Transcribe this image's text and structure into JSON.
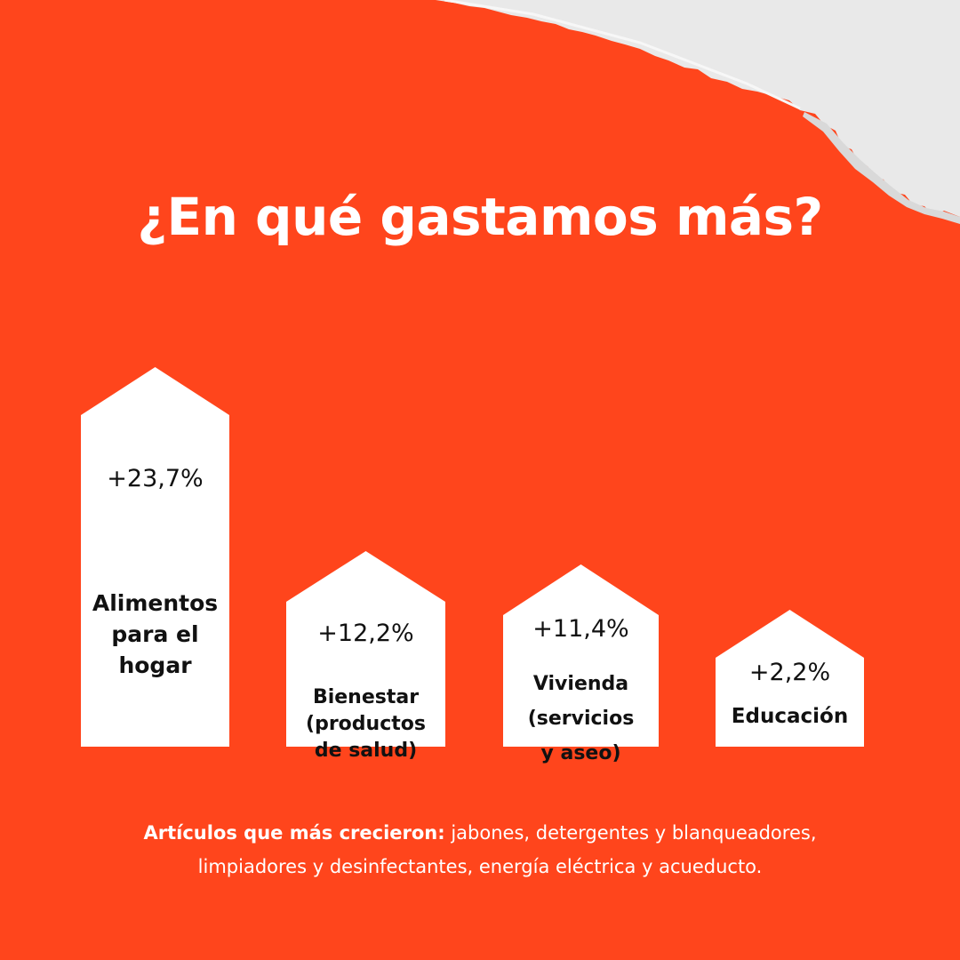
{
  "title": "¿En qué gastamos más?",
  "chart_data": {
    "type": "bar",
    "categories": [
      "Alimentos para el hogar",
      "Bienestar (productos de salud)",
      "Vivienda (servicios y aseo)",
      "Educación"
    ],
    "values": [
      23.7,
      12.2,
      11.4,
      2.2
    ],
    "value_labels": [
      "+23,7%",
      "+12,2%",
      "+11,4%",
      "+2,2%"
    ],
    "category_lines": [
      "Alimentos\npara el\nhogar",
      "Bienestar\n(productos\nde salud)",
      "Vivienda\n(servicios\ny aseo)",
      "Educación"
    ]
  },
  "footer": {
    "lead": "Artículos que más crecieron:",
    "text": " jabones, detergentes y blanqueadores, limpiadores y desinfectantes, energía eléctrica y acueducto."
  },
  "colors": {
    "background": "#ff451c",
    "house": "#ffffff",
    "text_dark": "#111111",
    "paper": "#ececec"
  }
}
